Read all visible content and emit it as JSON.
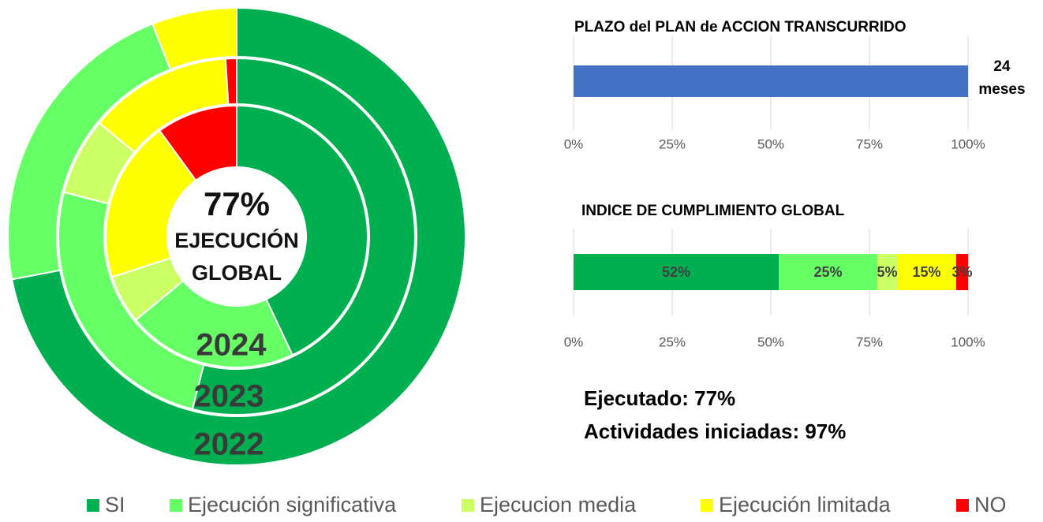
{
  "chart_data": [
    {
      "type": "pie",
      "categories": [
        "2022",
        "2023",
        "2024"
      ],
      "center_text": [
        "77%",
        "EJECUCIÓN",
        "GLOBAL"
      ],
      "series": [
        {
          "name": "SI",
          "color": "#00b050",
          "values": [
            72,
            54,
            43
          ]
        },
        {
          "name": "Ejecución significativa",
          "color": "#66ff66",
          "values": [
            22,
            25,
            21
          ]
        },
        {
          "name": "Ejecucion media",
          "color": "#ccff66",
          "values": [
            0,
            7,
            6
          ]
        },
        {
          "name": "Ejecución limitada",
          "color": "#ffff00",
          "values": [
            6,
            13,
            20
          ]
        },
        {
          "name": "NO",
          "color": "#ff0000",
          "values": [
            0,
            1,
            10
          ]
        }
      ]
    },
    {
      "type": "bar",
      "title": "PLAZO del PLAN de ACCION TRANSCURRIDO",
      "series": [
        {
          "color": "#4472c4",
          "values": [
            100
          ]
        }
      ],
      "annotation": [
        "24",
        "meses"
      ],
      "xlim": [
        0,
        100
      ],
      "xticks": [
        {
          "value": 0,
          "label": "0%"
        },
        {
          "value": 25,
          "label": "25%"
        },
        {
          "value": 50,
          "label": "50%"
        },
        {
          "value": 75,
          "label": "75%"
        },
        {
          "value": 100,
          "label": "100%"
        }
      ],
      "grid": true
    },
    {
      "type": "bar",
      "title": "INDICE DE CUMPLIMIENTO GLOBAL",
      "stacked": true,
      "series": [
        {
          "color": "#00b050",
          "values": [
            52
          ],
          "value_labels": [
            "52%"
          ]
        },
        {
          "color": "#66ff66",
          "values": [
            25
          ],
          "value_labels": [
            "25%"
          ]
        },
        {
          "color": "#ccff66",
          "values": [
            5
          ],
          "value_labels": [
            "5%"
          ]
        },
        {
          "color": "#ffff00",
          "values": [
            15
          ],
          "value_labels": [
            "15%"
          ]
        },
        {
          "color": "#ff0000",
          "values": [
            3
          ],
          "value_labels": [
            "3%"
          ]
        }
      ],
      "xlim": [
        0,
        100
      ],
      "xticks": [
        {
          "value": 0,
          "label": "0%"
        },
        {
          "value": 25,
          "label": "25%"
        },
        {
          "value": 50,
          "label": "50%"
        },
        {
          "value": 75,
          "label": "75%"
        },
        {
          "value": 100,
          "label": "100%"
        }
      ],
      "grid": true
    }
  ],
  "annotations": [
    "Ejecutado: 77%",
    "Actividades iniciadas: 97%"
  ]
}
